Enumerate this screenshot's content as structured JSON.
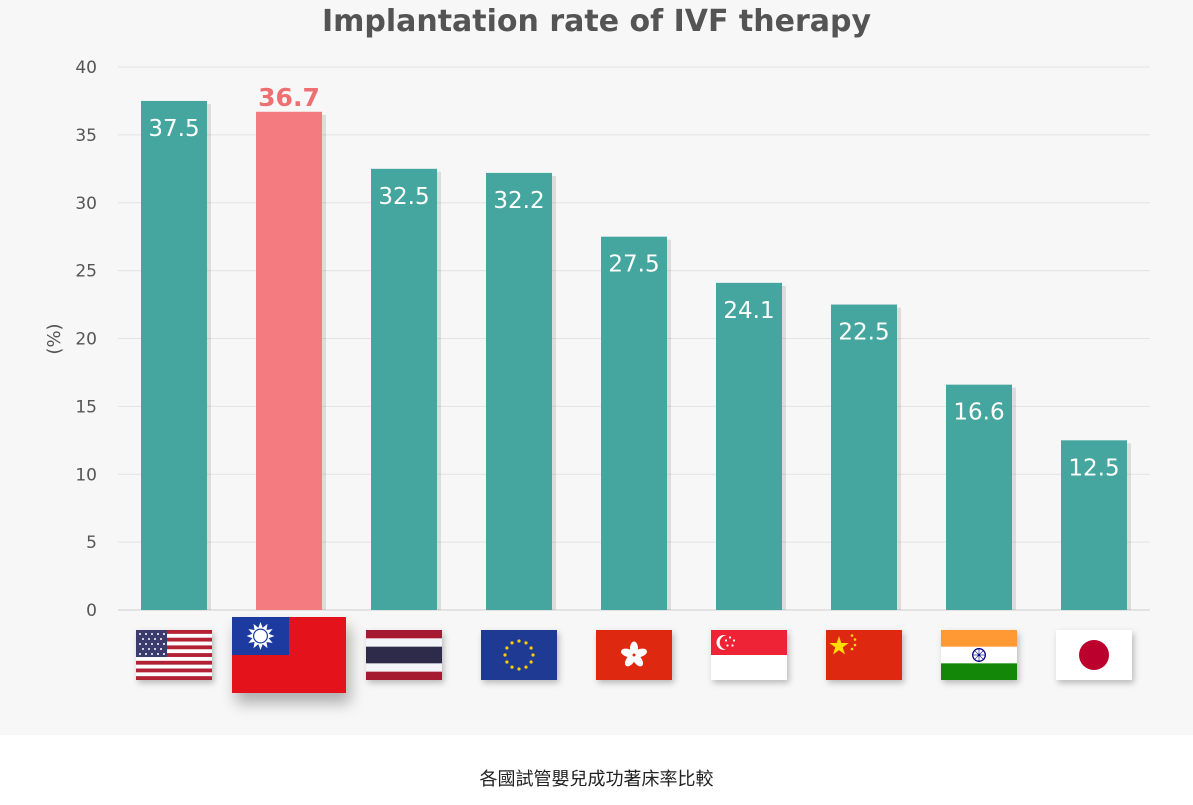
{
  "chart_data": {
    "type": "bar",
    "title": "Implantation rate of IVF therapy",
    "ylabel": "(%)",
    "xlabel": "",
    "ylim": [
      0,
      40
    ],
    "yticks": [
      "0",
      "5",
      "10",
      "15",
      "20",
      "25",
      "30",
      "35",
      "40"
    ],
    "grid": true,
    "categories": [
      "United States",
      "Taiwan",
      "Thailand",
      "European Union",
      "Hong Kong",
      "Singapore",
      "China",
      "India",
      "Japan"
    ],
    "category_icons": [
      "us-flag-icon",
      "taiwan-flag-icon",
      "thailand-flag-icon",
      "eu-flag-icon",
      "hong-kong-flag-icon",
      "singapore-flag-icon",
      "china-flag-icon",
      "india-flag-icon",
      "japan-flag-icon"
    ],
    "values": [
      37.5,
      36.7,
      32.5,
      32.2,
      27.5,
      24.1,
      22.5,
      16.6,
      12.5
    ],
    "value_labels": [
      "37.5",
      "36.7",
      "32.5",
      "32.2",
      "27.5",
      "24.1",
      "22.5",
      "16.6",
      "12.5"
    ],
    "highlight_index": 1,
    "colors": {
      "bar": "#45a69f",
      "highlight": "#f47b7f",
      "highlight_label": "#ee6f72"
    }
  },
  "caption": "各國試管嬰兒成功著床率比較"
}
